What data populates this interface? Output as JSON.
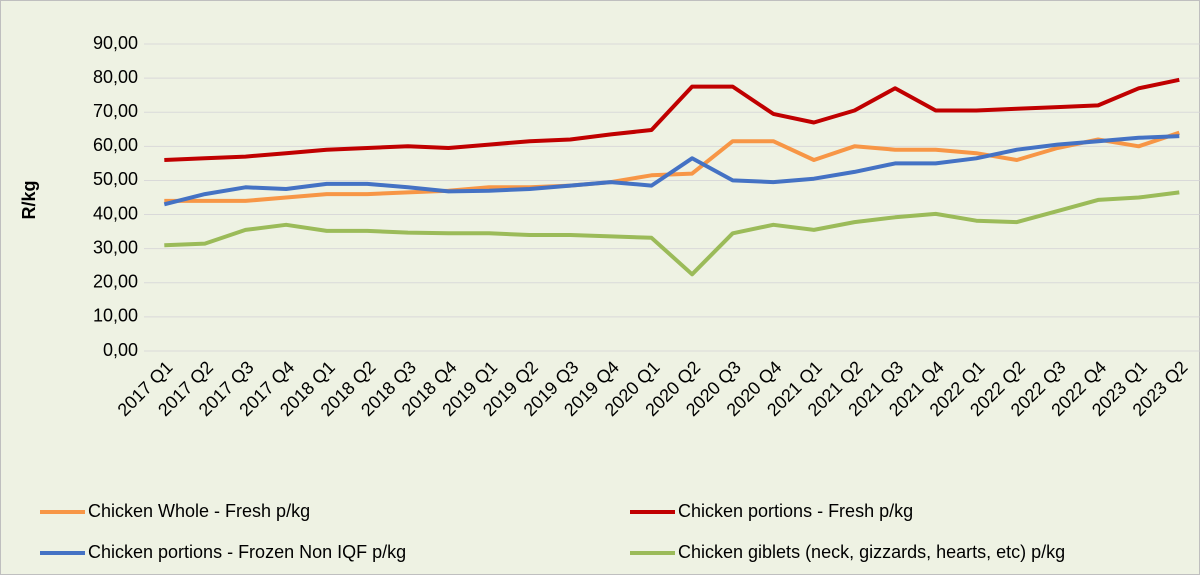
{
  "chart_data": {
    "type": "line",
    "y_label": "R/kg",
    "categories": [
      "2017 Q1",
      "2017 Q2",
      "2017 Q3",
      "2017 Q4",
      "2018 Q1",
      "2018 Q2",
      "2018 Q3",
      "2018 Q4",
      "2019 Q1",
      "2019 Q2",
      "2019 Q3",
      "2019 Q4",
      "2020 Q1",
      "2020 Q2",
      "2020 Q3",
      "2020 Q4",
      "2021 Q1",
      "2021 Q2",
      "2021 Q3",
      "2021 Q4",
      "2022 Q1",
      "2022 Q2",
      "2022 Q3",
      "2022 Q4",
      "2023 Q1",
      "2023 Q2"
    ],
    "series": [
      {
        "name": "Chicken Whole - Fresh p/kg",
        "color": "#f79646",
        "values": [
          44,
          44,
          44,
          45,
          46,
          46,
          46.5,
          47,
          48,
          48,
          48.5,
          49.5,
          51.5,
          52,
          61.5,
          61.5,
          56,
          60,
          59,
          59,
          58,
          56,
          59.5,
          62,
          60,
          64
        ]
      },
      {
        "name": "Chicken portions - Fresh p/kg",
        "color": "#c00000",
        "values": [
          56,
          56.5,
          57,
          58,
          59,
          59.5,
          60,
          59.5,
          60.5,
          61.5,
          62,
          63.5,
          64.8,
          77.5,
          77.5,
          69.5,
          67,
          70.5,
          77,
          70.5,
          70.5,
          71,
          71.5,
          72,
          77,
          79.5
        ]
      },
      {
        "name": "Chicken portions - Frozen Non IQF p/kg",
        "color": "#4472c4",
        "values": [
          43,
          46,
          48,
          47.5,
          49,
          49,
          48,
          46.8,
          47,
          47.5,
          48.5,
          49.5,
          48.5,
          56.5,
          50,
          49.5,
          50.5,
          52.5,
          55,
          55,
          56.5,
          59,
          60.5,
          61.5,
          62.5,
          63
        ]
      },
      {
        "name": "Chicken giblets (neck, gizzards, hearts, etc) p/kg",
        "color": "#9bbb59",
        "values": [
          31,
          31.5,
          35.5,
          37,
          35.2,
          35.2,
          34.7,
          34.5,
          34.5,
          34,
          34,
          33.6,
          33.2,
          22.5,
          34.5,
          37,
          35.5,
          37.8,
          39.2,
          40.2,
          38.2,
          37.8,
          41,
          44.3,
          45,
          46.5
        ]
      }
    ],
    "ylim": [
      0,
      90
    ],
    "yticks": [
      {
        "value": 0,
        "label": "0,00"
      },
      {
        "value": 10,
        "label": "10,00"
      },
      {
        "value": 20,
        "label": "20,00"
      },
      {
        "value": 30,
        "label": "30,00"
      },
      {
        "value": 40,
        "label": "40,00"
      },
      {
        "value": 50,
        "label": "50,00"
      },
      {
        "value": 60,
        "label": "60,00"
      },
      {
        "value": 70,
        "label": "70,00"
      },
      {
        "value": 80,
        "label": "80,00"
      },
      {
        "value": 90,
        "label": "90,00"
      }
    ],
    "grid": true
  }
}
